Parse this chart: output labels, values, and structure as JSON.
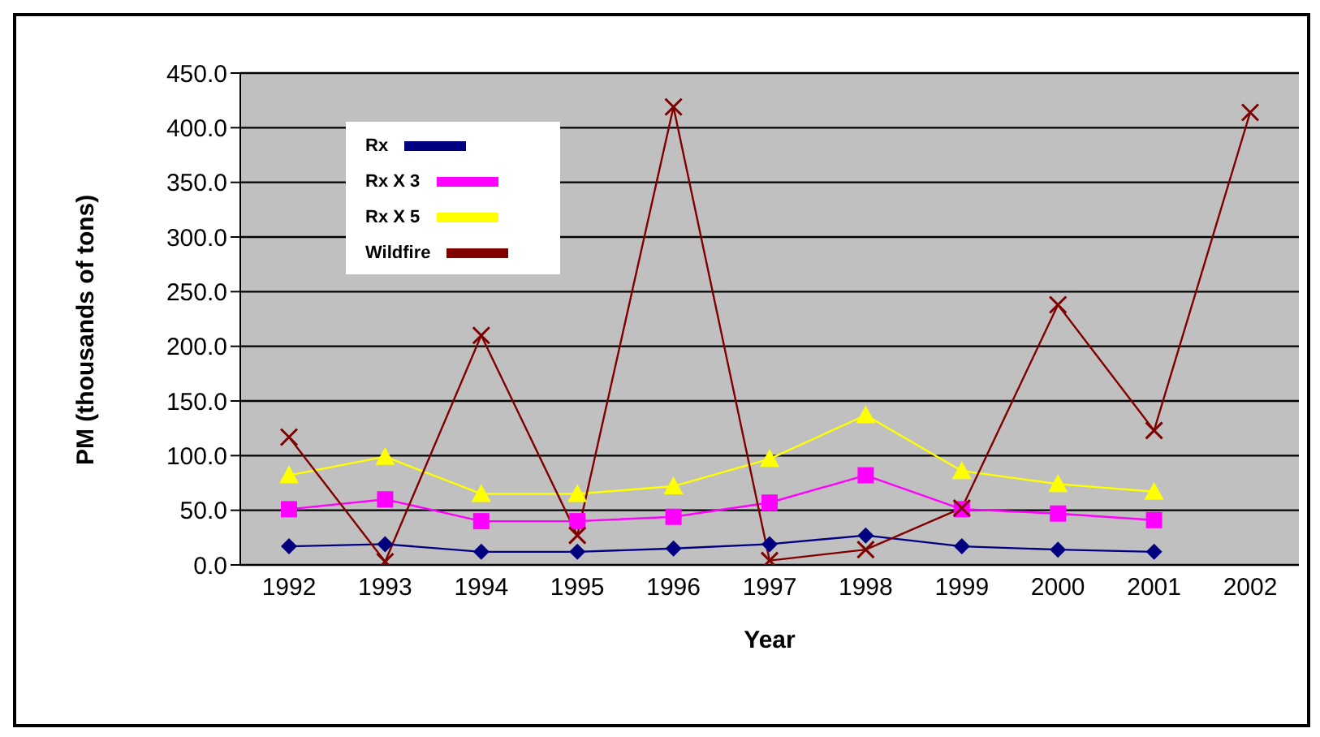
{
  "chart_data": {
    "type": "line",
    "xlabel": "Year",
    "ylabel": "PM (thousands of tons)",
    "categories": [
      "1992",
      "1993",
      "1994",
      "1995",
      "1996",
      "1997",
      "1998",
      "1999",
      "2000",
      "2001",
      "2002"
    ],
    "series": [
      {
        "name": "Rx",
        "color": "#000080",
        "marker": "diamond",
        "values": [
          17,
          19,
          12,
          12,
          15,
          19,
          27,
          17,
          14,
          12,
          null
        ]
      },
      {
        "name": "Rx X 3",
        "color": "#ff00ff",
        "marker": "square",
        "values": [
          51,
          60,
          40,
          40,
          44,
          57,
          82,
          51,
          47,
          41,
          null
        ]
      },
      {
        "name": "Rx X 5",
        "color": "#ffff00",
        "marker": "triangle",
        "values": [
          82,
          99,
          65,
          65,
          72,
          97,
          137,
          86,
          74,
          67,
          null
        ]
      },
      {
        "name": "Wildfire",
        "color": "#800000",
        "marker": "cross",
        "values": [
          117,
          3,
          210,
          27,
          419,
          4,
          14,
          52,
          238,
          123,
          414
        ]
      }
    ],
    "ylim": [
      0,
      450
    ],
    "yticks": [
      {
        "value": 0,
        "label": "0.0"
      },
      {
        "value": 50,
        "label": "50.0"
      },
      {
        "value": 100,
        "label": "100.0"
      },
      {
        "value": 150,
        "label": "150.0"
      },
      {
        "value": 200,
        "label": "200.0"
      },
      {
        "value": 250,
        "label": "250.0"
      },
      {
        "value": 300,
        "label": "300.0"
      },
      {
        "value": 350,
        "label": "350.0"
      },
      {
        "value": 400,
        "label": "400.0"
      },
      {
        "value": 450,
        "label": "450.0"
      }
    ],
    "grid": "y",
    "legend": "top left"
  }
}
